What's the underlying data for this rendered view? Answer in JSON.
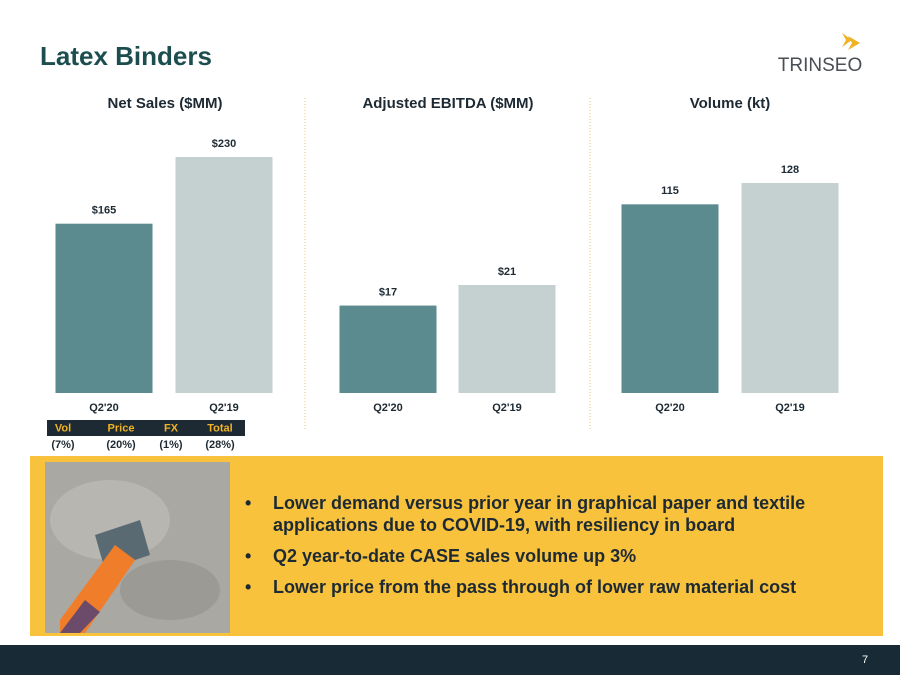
{
  "title": "Latex Binders",
  "logo": "TRINSEO",
  "chart_data": [
    {
      "type": "bar",
      "title": "Net Sales ($MM)",
      "categories": [
        "Q2'20",
        "Q2'19"
      ],
      "values": [
        165,
        230
      ],
      "value_labels": [
        "$165",
        "$230"
      ],
      "colors": [
        "#5b8a8f",
        "#c5d0d0"
      ]
    },
    {
      "type": "bar",
      "title": "Adjusted EBITDA ($MM)",
      "categories": [
        "Q2'20",
        "Q2'19"
      ],
      "values": [
        17,
        21
      ],
      "value_labels": [
        "$17",
        "$21"
      ],
      "colors": [
        "#5b8a8f",
        "#c5d0d0"
      ]
    },
    {
      "type": "bar",
      "title": "Volume (kt)",
      "categories": [
        "Q2'20",
        "Q2'19"
      ],
      "values": [
        115,
        128
      ],
      "colors": [
        "#5b8a8f",
        "#c5d0d0"
      ]
    }
  ],
  "table": {
    "header": [
      "Vol",
      "Price",
      "FX",
      "Total"
    ],
    "rows": [
      [
        "(7%)",
        "(20%)",
        "(1%)",
        "(28%)"
      ]
    ]
  },
  "bullets": [
    "Lower demand versus prior year in graphical paper and textile applications due to COVID-19, with resiliency in board",
    "Q2 year-to-date CASE sales volume up 3%",
    "Lower price from the pass through of lower raw material cost"
  ],
  "page_number": "7"
}
